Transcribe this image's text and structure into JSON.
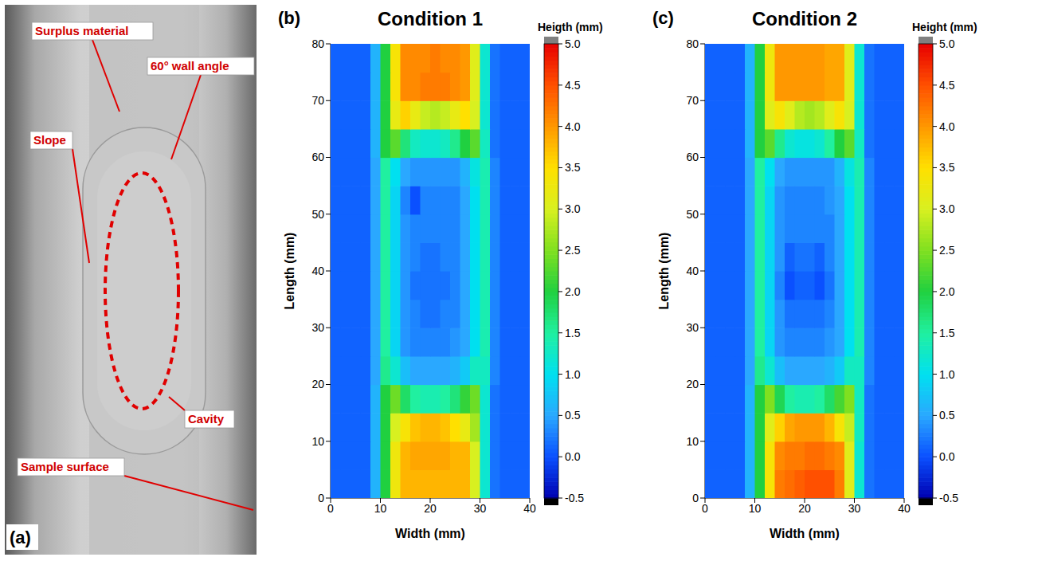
{
  "panel_a": {
    "label": "(a)",
    "annotations": [
      "Surplus material",
      "60° wall angle",
      "Slope",
      "Cavity",
      "Sample surface"
    ]
  },
  "chart_data": [
    {
      "type": "heatmap",
      "panel_label": "(b)",
      "title": "Condition 1",
      "x_label": "Width (mm)",
      "y_label": "Length (mm)",
      "xlim": [
        0,
        40
      ],
      "ylim": [
        0,
        80
      ],
      "xticks": [
        0,
        10,
        20,
        30,
        40
      ],
      "yticks": [
        0,
        10,
        20,
        30,
        40,
        50,
        60,
        70,
        80
      ],
      "x": [
        1,
        3,
        5,
        7,
        9,
        11,
        13,
        15,
        17,
        19,
        21,
        23,
        25,
        27,
        29,
        31,
        33,
        35,
        37,
        39
      ],
      "y": [
        2.5,
        7.5,
        12.5,
        17.5,
        22.5,
        27.5,
        32.5,
        37.5,
        42.5,
        47.5,
        52.5,
        57.5,
        62.5,
        67.5,
        72.5,
        77.5
      ],
      "z": [
        [
          0.1,
          0.1,
          0.1,
          0.1,
          0.6,
          2.0,
          3.3,
          3.8,
          3.8,
          3.8,
          3.8,
          3.8,
          3.8,
          3.8,
          3.0,
          1.2,
          0.2,
          0.1,
          0.1,
          0.1
        ],
        [
          0.1,
          0.1,
          0.1,
          0.1,
          0.6,
          2.0,
          3.3,
          3.8,
          3.9,
          3.9,
          3.9,
          3.9,
          3.8,
          3.8,
          3.0,
          1.2,
          0.2,
          0.1,
          0.1,
          0.1
        ],
        [
          0.1,
          0.1,
          0.1,
          0.1,
          0.6,
          2.0,
          3.0,
          3.4,
          3.7,
          3.8,
          3.8,
          3.7,
          3.5,
          3.2,
          2.7,
          1.2,
          0.2,
          0.1,
          0.1,
          0.1
        ],
        [
          0.1,
          0.1,
          0.1,
          0.1,
          0.6,
          2.0,
          2.4,
          1.8,
          1.5,
          1.4,
          1.4,
          1.5,
          1.7,
          2.1,
          2.4,
          1.2,
          0.2,
          0.1,
          0.1,
          0.1
        ],
        [
          0.1,
          0.1,
          0.1,
          0.1,
          0.5,
          1.6,
          1.2,
          0.7,
          0.5,
          0.5,
          0.5,
          0.5,
          0.6,
          0.8,
          1.3,
          1.3,
          0.3,
          0.1,
          0.1,
          0.1
        ],
        [
          0.1,
          0.1,
          0.1,
          0.1,
          0.5,
          1.5,
          0.9,
          0.4,
          0.3,
          0.3,
          0.3,
          0.3,
          0.4,
          0.5,
          1.0,
          1.4,
          0.3,
          0.1,
          0.1,
          0.1
        ],
        [
          0.1,
          0.1,
          0.1,
          0.1,
          0.5,
          1.5,
          0.9,
          0.4,
          0.3,
          0.2,
          0.2,
          0.3,
          0.3,
          0.5,
          1.0,
          1.4,
          0.3,
          0.1,
          0.1,
          0.1
        ],
        [
          0.1,
          0.1,
          0.1,
          0.1,
          0.5,
          1.5,
          0.9,
          0.4,
          0.2,
          0.2,
          0.2,
          0.2,
          0.3,
          0.5,
          1.0,
          1.4,
          0.3,
          0.1,
          0.1,
          0.1
        ],
        [
          0.1,
          0.1,
          0.1,
          0.1,
          0.5,
          1.5,
          0.9,
          0.4,
          0.3,
          0.2,
          0.2,
          0.3,
          0.3,
          0.5,
          1.0,
          1.4,
          0.3,
          0.1,
          0.1,
          0.1
        ],
        [
          0.1,
          0.1,
          0.1,
          0.1,
          0.5,
          1.5,
          0.9,
          0.4,
          0.3,
          0.3,
          0.3,
          0.3,
          0.3,
          0.5,
          1.0,
          1.4,
          0.3,
          0.1,
          0.1,
          0.1
        ],
        [
          0.1,
          0.1,
          0.1,
          0.1,
          0.5,
          1.5,
          0.9,
          0.3,
          0.0,
          0.3,
          0.3,
          0.3,
          0.3,
          0.5,
          1.0,
          1.4,
          0.3,
          0.1,
          0.1,
          0.1
        ],
        [
          0.1,
          0.1,
          0.1,
          0.1,
          0.5,
          1.5,
          1.0,
          0.5,
          0.4,
          0.4,
          0.4,
          0.4,
          0.4,
          0.6,
          1.1,
          1.4,
          0.3,
          0.1,
          0.1,
          0.1
        ],
        [
          0.1,
          0.1,
          0.1,
          0.1,
          0.6,
          2.0,
          2.3,
          1.7,
          1.3,
          1.2,
          1.2,
          1.3,
          1.6,
          2.0,
          2.3,
          1.3,
          0.2,
          0.1,
          0.1,
          0.1
        ],
        [
          0.1,
          0.1,
          0.1,
          0.1,
          0.6,
          2.0,
          3.2,
          3.6,
          3.2,
          2.9,
          2.8,
          2.9,
          3.2,
          3.5,
          3.0,
          1.2,
          0.2,
          0.1,
          0.1,
          0.1
        ],
        [
          0.1,
          0.1,
          0.1,
          0.1,
          0.6,
          2.0,
          3.4,
          4.1,
          4.1,
          4.2,
          4.2,
          4.2,
          4.1,
          4.0,
          3.1,
          1.2,
          0.2,
          0.1,
          0.1,
          0.1
        ],
        [
          0.1,
          0.1,
          0.1,
          0.1,
          0.6,
          2.0,
          3.4,
          4.1,
          4.1,
          4.1,
          4.2,
          4.1,
          4.1,
          4.0,
          3.1,
          1.2,
          0.2,
          0.1,
          0.1,
          0.1
        ]
      ],
      "colorbar": {
        "title": "Heigth (mm)",
        "range": [
          -0.5,
          5.0
        ],
        "ticks": [
          -0.5,
          {
            "value": 0,
            "label": "0.0"
          },
          0.5,
          {
            "value": 1,
            "label": "1.0"
          },
          1.5,
          {
            "value": 2,
            "label": "2.0"
          },
          2.5,
          {
            "value": 3,
            "label": "3.0"
          },
          3.5,
          {
            "value": 4,
            "label": "4.0"
          },
          4.5,
          {
            "value": 5,
            "label": "5.0"
          }
        ]
      }
    },
    {
      "type": "heatmap",
      "panel_label": "(c)",
      "title": "Condition 2",
      "x_label": "Width (mm)",
      "y_label": "Length (mm)",
      "xlim": [
        0,
        40
      ],
      "ylim": [
        0,
        80
      ],
      "xticks": [
        0,
        10,
        20,
        30,
        40
      ],
      "yticks": [
        0,
        10,
        20,
        30,
        40,
        50,
        60,
        70,
        80
      ],
      "x": [
        1,
        3,
        5,
        7,
        9,
        11,
        13,
        15,
        17,
        19,
        21,
        23,
        25,
        27,
        29,
        31,
        33,
        35,
        37,
        39
      ],
      "y": [
        2.5,
        7.5,
        12.5,
        17.5,
        22.5,
        27.5,
        32.5,
        37.5,
        42.5,
        47.5,
        52.5,
        57.5,
        62.5,
        67.5,
        72.5,
        77.5
      ],
      "z": [
        [
          0.1,
          0.1,
          0.1,
          0.1,
          0.6,
          2.0,
          3.4,
          4.2,
          4.3,
          4.4,
          4.5,
          4.5,
          4.5,
          4.2,
          3.1,
          1.2,
          0.2,
          0.1,
          0.1,
          0.1
        ],
        [
          0.1,
          0.1,
          0.1,
          0.1,
          0.6,
          2.0,
          3.4,
          4.1,
          4.2,
          4.2,
          4.3,
          4.3,
          4.2,
          4.1,
          3.1,
          1.2,
          0.2,
          0.1,
          0.1,
          0.1
        ],
        [
          0.1,
          0.1,
          0.1,
          0.1,
          0.6,
          2.0,
          3.1,
          3.6,
          3.9,
          4.0,
          4.0,
          4.0,
          3.8,
          3.4,
          2.9,
          1.3,
          0.2,
          0.1,
          0.1,
          0.1
        ],
        [
          0.1,
          0.1,
          0.1,
          0.1,
          0.6,
          2.0,
          2.5,
          1.9,
          1.5,
          1.4,
          1.4,
          1.5,
          1.8,
          2.2,
          2.5,
          1.3,
          0.2,
          0.1,
          0.1,
          0.1
        ],
        [
          0.1,
          0.1,
          0.1,
          0.1,
          0.5,
          1.6,
          1.2,
          0.7,
          0.5,
          0.5,
          0.5,
          0.5,
          0.6,
          0.8,
          1.3,
          1.3,
          0.3,
          0.1,
          0.1,
          0.1
        ],
        [
          0.1,
          0.1,
          0.1,
          0.1,
          0.5,
          1.5,
          0.9,
          0.4,
          0.3,
          0.3,
          0.3,
          0.3,
          0.4,
          0.5,
          1.0,
          1.4,
          0.3,
          0.1,
          0.1,
          0.1
        ],
        [
          0.1,
          0.1,
          0.1,
          0.1,
          0.5,
          1.5,
          0.9,
          0.4,
          0.2,
          0.2,
          0.2,
          0.2,
          0.3,
          0.5,
          1.0,
          1.4,
          0.3,
          0.1,
          0.1,
          0.1
        ],
        [
          0.1,
          0.1,
          0.1,
          0.1,
          0.5,
          1.5,
          0.9,
          0.3,
          0.0,
          0.1,
          0.1,
          0.0,
          0.2,
          0.5,
          1.0,
          1.4,
          0.3,
          0.1,
          0.1,
          0.1
        ],
        [
          0.1,
          0.1,
          0.1,
          0.1,
          0.5,
          1.5,
          0.9,
          0.4,
          0.1,
          0.2,
          0.2,
          0.1,
          0.3,
          0.5,
          1.0,
          1.4,
          0.3,
          0.1,
          0.1,
          0.1
        ],
        [
          0.1,
          0.1,
          0.1,
          0.1,
          0.5,
          1.5,
          0.9,
          0.4,
          0.3,
          0.3,
          0.3,
          0.3,
          0.3,
          0.5,
          1.0,
          1.4,
          0.3,
          0.1,
          0.1,
          0.1
        ],
        [
          0.1,
          0.1,
          0.1,
          0.1,
          0.5,
          1.5,
          0.9,
          0.4,
          0.3,
          0.3,
          0.3,
          0.3,
          0.4,
          0.5,
          1.0,
          1.4,
          0.3,
          0.1,
          0.1,
          0.1
        ],
        [
          0.1,
          0.1,
          0.1,
          0.1,
          0.5,
          1.5,
          1.0,
          0.5,
          0.4,
          0.4,
          0.4,
          0.4,
          0.4,
          0.6,
          1.1,
          1.4,
          0.3,
          0.1,
          0.1,
          0.1
        ],
        [
          0.1,
          0.1,
          0.1,
          0.1,
          0.6,
          2.0,
          2.3,
          1.6,
          1.2,
          1.1,
          1.1,
          1.2,
          1.5,
          2.0,
          2.3,
          1.3,
          0.2,
          0.1,
          0.1,
          0.1
        ],
        [
          0.1,
          0.1,
          0.1,
          0.1,
          0.6,
          2.0,
          3.1,
          3.4,
          3.1,
          2.8,
          2.7,
          2.8,
          3.1,
          3.4,
          3.0,
          1.2,
          0.2,
          0.1,
          0.1,
          0.1
        ],
        [
          0.1,
          0.1,
          0.1,
          0.1,
          0.6,
          2.0,
          3.3,
          4.0,
          4.0,
          4.0,
          4.0,
          4.0,
          3.9,
          3.9,
          3.1,
          1.2,
          0.2,
          0.1,
          0.1,
          0.1
        ],
        [
          0.1,
          0.1,
          0.1,
          0.1,
          0.6,
          2.0,
          3.3,
          4.0,
          4.0,
          4.0,
          4.0,
          4.0,
          3.9,
          3.9,
          3.1,
          1.2,
          0.2,
          0.1,
          0.1,
          0.1
        ]
      ],
      "colorbar": {
        "title": "Height (mm)",
        "range": [
          -0.5,
          5.0
        ],
        "ticks": [
          -0.5,
          {
            "value": 0,
            "label": "0.0"
          },
          0.5,
          {
            "value": 1,
            "label": "1.0"
          },
          1.5,
          {
            "value": 2,
            "label": "2.0"
          },
          2.5,
          {
            "value": 3,
            "label": "3.0"
          },
          3.5,
          {
            "value": 4,
            "label": "4.0"
          },
          4.5,
          {
            "value": 5,
            "label": "5.0"
          }
        ]
      }
    }
  ]
}
